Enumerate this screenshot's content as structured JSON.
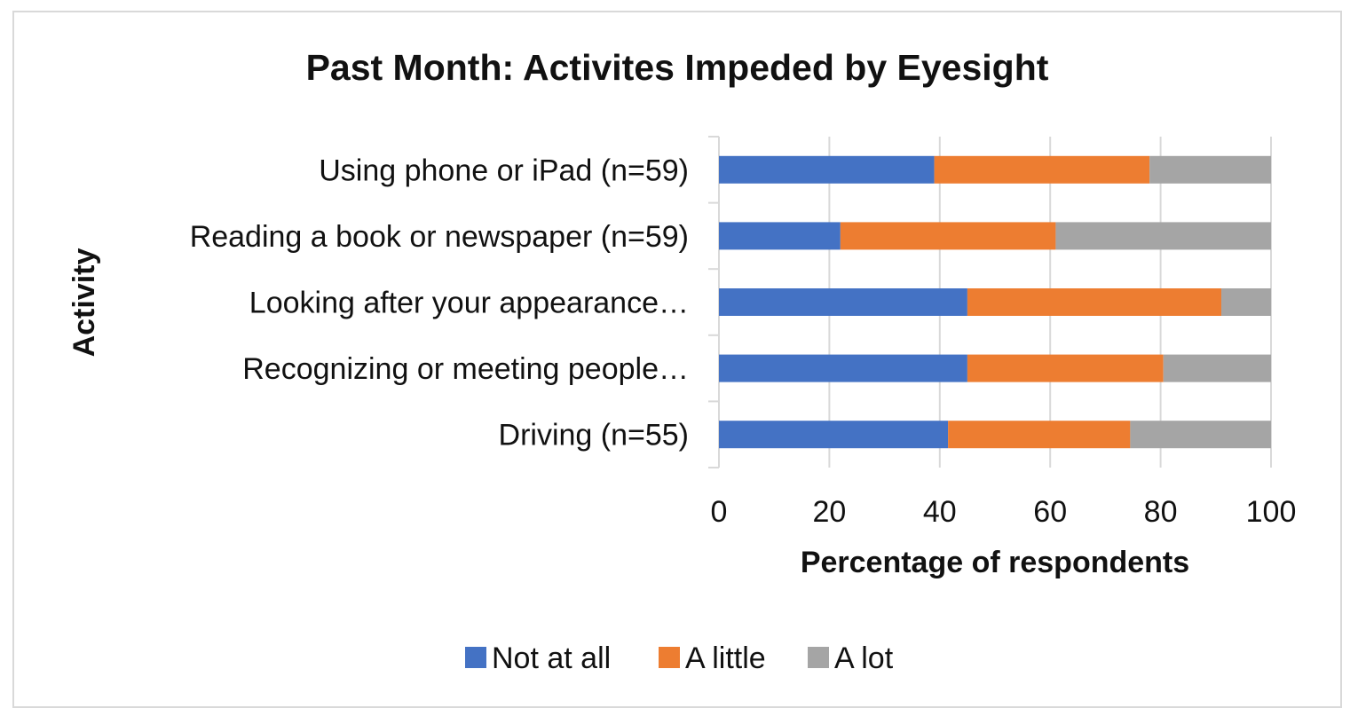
{
  "chart_data": {
    "type": "bar",
    "orientation": "horizontal",
    "stacked": true,
    "title": "Past Month: Activites Impeded by Eyesight",
    "xlabel": "Percentage of respondents",
    "ylabel": "Activity",
    "xlim": [
      0,
      100
    ],
    "xticks": [
      "0",
      "20",
      "40",
      "60",
      "80",
      "100"
    ],
    "categories": [
      "Using phone or iPad (n=59)",
      "Reading a book or newspaper (n=59)",
      "Looking after your appearance…",
      "Recognizing or meeting people…",
      "Driving (n=55)"
    ],
    "series": [
      {
        "name": "Not at all",
        "color": "#4472c4",
        "values": [
          39,
          22,
          45,
          45,
          41.5
        ]
      },
      {
        "name": "A little",
        "color": "#ed7d31",
        "values": [
          39,
          39,
          46,
          35.5,
          33
        ]
      },
      {
        "name": "A lot",
        "color": "#a5a5a5",
        "values": [
          22,
          39,
          9,
          19.5,
          25.5
        ]
      }
    ],
    "legend_position": "bottom",
    "grid": true
  }
}
